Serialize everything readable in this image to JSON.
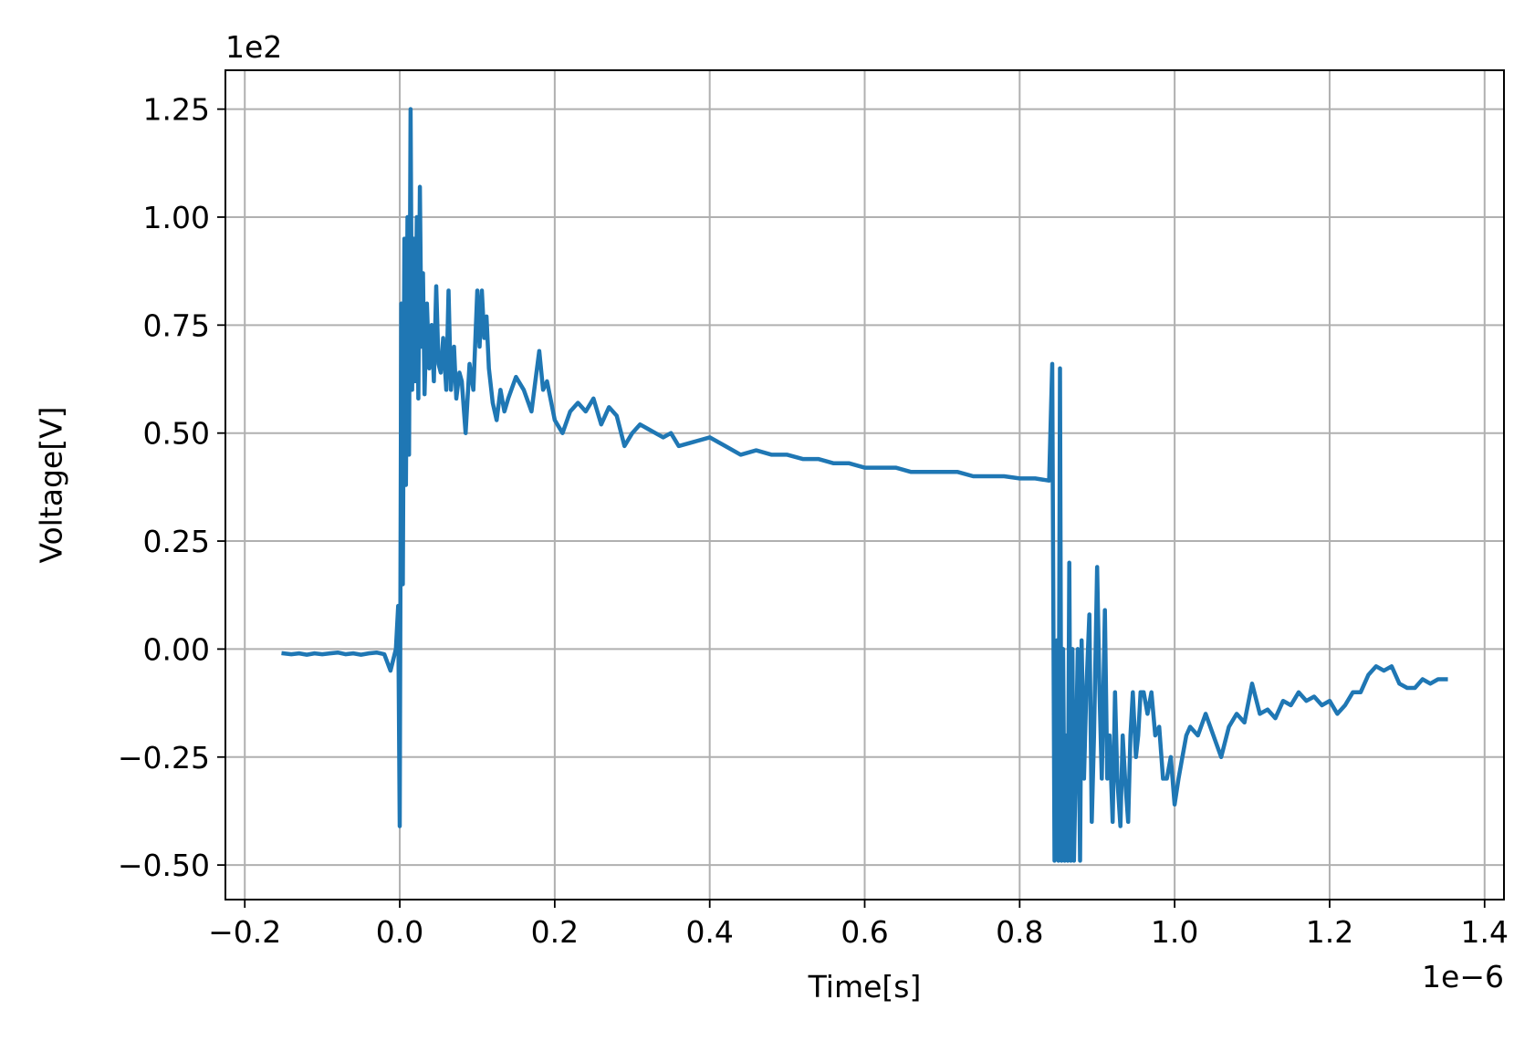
{
  "chart_data": {
    "type": "line",
    "title": "",
    "xlabel": "Time[s]",
    "ylabel": "Voltage[V]",
    "x_offset_text": "1e−6",
    "y_offset_text": "1e2",
    "x_scale_factor": 1e-06,
    "y_scale_factor": 100,
    "xlim": [
      -0.225,
      1.425
    ],
    "ylim": [
      -0.58,
      1.34
    ],
    "x_ticks": [
      -0.2,
      0.0,
      0.2,
      0.4,
      0.6,
      0.8,
      1.0,
      1.2,
      1.4
    ],
    "x_tick_labels": [
      "−0.2",
      "0.0",
      "0.2",
      "0.4",
      "0.6",
      "0.8",
      "1.0",
      "1.2",
      "1.4"
    ],
    "y_ticks": [
      -0.5,
      -0.25,
      0.0,
      0.25,
      0.5,
      0.75,
      1.0,
      1.25
    ],
    "y_tick_labels": [
      "−0.50",
      "−0.25",
      "0.00",
      "0.25",
      "0.50",
      "0.75",
      "1.00",
      "1.25"
    ],
    "grid": true,
    "line_color": "#1f77b4",
    "series": [
      {
        "x": [
          -0.15,
          -0.14,
          -0.13,
          -0.12,
          -0.11,
          -0.1,
          -0.09,
          -0.08,
          -0.07,
          -0.06,
          -0.05,
          -0.04,
          -0.03,
          -0.02,
          -0.012,
          -0.005,
          -0.002,
          0.0,
          0.002,
          0.004,
          0.006,
          0.008,
          0.01,
          0.012,
          0.014,
          0.016,
          0.018,
          0.02,
          0.022,
          0.024,
          0.026,
          0.028,
          0.03,
          0.032,
          0.035,
          0.038,
          0.041,
          0.044,
          0.047,
          0.05,
          0.053,
          0.056,
          0.06,
          0.063,
          0.066,
          0.07,
          0.073,
          0.077,
          0.08,
          0.085,
          0.09,
          0.095,
          0.1,
          0.103,
          0.106,
          0.109,
          0.112,
          0.115,
          0.12,
          0.125,
          0.13,
          0.135,
          0.14,
          0.15,
          0.16,
          0.17,
          0.175,
          0.18,
          0.185,
          0.19,
          0.2,
          0.21,
          0.22,
          0.23,
          0.24,
          0.25,
          0.26,
          0.27,
          0.28,
          0.29,
          0.3,
          0.31,
          0.32,
          0.33,
          0.34,
          0.35,
          0.36,
          0.38,
          0.4,
          0.42,
          0.44,
          0.46,
          0.48,
          0.5,
          0.52,
          0.54,
          0.56,
          0.58,
          0.6,
          0.62,
          0.64,
          0.66,
          0.68,
          0.7,
          0.72,
          0.74,
          0.76,
          0.78,
          0.8,
          0.82,
          0.838,
          0.842,
          0.845,
          0.848,
          0.85,
          0.852,
          0.854,
          0.856,
          0.858,
          0.86,
          0.862,
          0.864,
          0.866,
          0.868,
          0.87,
          0.872,
          0.875,
          0.878,
          0.88,
          0.883,
          0.886,
          0.89,
          0.893,
          0.896,
          0.9,
          0.903,
          0.906,
          0.91,
          0.913,
          0.916,
          0.92,
          0.923,
          0.926,
          0.93,
          0.933,
          0.936,
          0.94,
          0.943,
          0.946,
          0.95,
          0.953,
          0.956,
          0.96,
          0.965,
          0.97,
          0.975,
          0.98,
          0.985,
          0.99,
          0.995,
          1.0,
          1.005,
          1.01,
          1.015,
          1.02,
          1.03,
          1.04,
          1.05,
          1.06,
          1.07,
          1.08,
          1.09,
          1.1,
          1.11,
          1.12,
          1.13,
          1.14,
          1.15,
          1.16,
          1.17,
          1.18,
          1.19,
          1.2,
          1.21,
          1.22,
          1.23,
          1.24,
          1.25,
          1.26,
          1.27,
          1.28,
          1.29,
          1.3,
          1.31,
          1.32,
          1.33,
          1.34,
          1.35
        ],
        "y": [
          -0.01,
          -0.012,
          -0.01,
          -0.013,
          -0.01,
          -0.012,
          -0.01,
          -0.008,
          -0.012,
          -0.01,
          -0.013,
          -0.01,
          -0.008,
          -0.012,
          -0.05,
          0.0,
          0.1,
          -0.41,
          0.8,
          0.15,
          0.95,
          0.38,
          1.0,
          0.45,
          1.25,
          0.6,
          0.95,
          0.62,
          1.0,
          0.58,
          1.07,
          0.7,
          0.87,
          0.59,
          0.8,
          0.65,
          0.75,
          0.62,
          0.84,
          0.66,
          0.64,
          0.72,
          0.6,
          0.83,
          0.6,
          0.7,
          0.58,
          0.64,
          0.62,
          0.5,
          0.66,
          0.6,
          0.83,
          0.7,
          0.83,
          0.72,
          0.77,
          0.65,
          0.57,
          0.53,
          0.6,
          0.55,
          0.58,
          0.63,
          0.6,
          0.55,
          0.62,
          0.69,
          0.6,
          0.62,
          0.53,
          0.5,
          0.55,
          0.57,
          0.55,
          0.58,
          0.52,
          0.56,
          0.54,
          0.47,
          0.5,
          0.52,
          0.51,
          0.5,
          0.49,
          0.5,
          0.47,
          0.48,
          0.49,
          0.47,
          0.45,
          0.46,
          0.45,
          0.45,
          0.44,
          0.44,
          0.43,
          0.43,
          0.42,
          0.42,
          0.42,
          0.41,
          0.41,
          0.41,
          0.41,
          0.4,
          0.4,
          0.4,
          0.395,
          0.395,
          0.39,
          0.66,
          -0.49,
          0.02,
          -0.49,
          0.65,
          -0.49,
          0.0,
          -0.49,
          -0.2,
          -0.49,
          0.2,
          -0.49,
          0.0,
          -0.49,
          -0.3,
          0.0,
          -0.49,
          0.02,
          -0.3,
          -0.1,
          0.08,
          -0.4,
          -0.2,
          0.19,
          -0.1,
          -0.3,
          0.09,
          -0.3,
          -0.2,
          -0.4,
          -0.1,
          -0.3,
          -0.41,
          -0.2,
          -0.3,
          -0.4,
          -0.2,
          -0.1,
          -0.25,
          -0.2,
          -0.1,
          -0.1,
          -0.15,
          -0.1,
          -0.2,
          -0.18,
          -0.3,
          -0.3,
          -0.25,
          -0.36,
          -0.3,
          -0.25,
          -0.2,
          -0.18,
          -0.2,
          -0.15,
          -0.2,
          -0.25,
          -0.18,
          -0.15,
          -0.17,
          -0.08,
          -0.15,
          -0.14,
          -0.16,
          -0.12,
          -0.13,
          -0.1,
          -0.12,
          -0.11,
          -0.13,
          -0.12,
          -0.15,
          -0.13,
          -0.1,
          -0.1,
          -0.06,
          -0.04,
          -0.05,
          -0.04,
          -0.08,
          -0.09,
          -0.09,
          -0.07,
          -0.08,
          -0.07,
          -0.07
        ]
      }
    ]
  }
}
